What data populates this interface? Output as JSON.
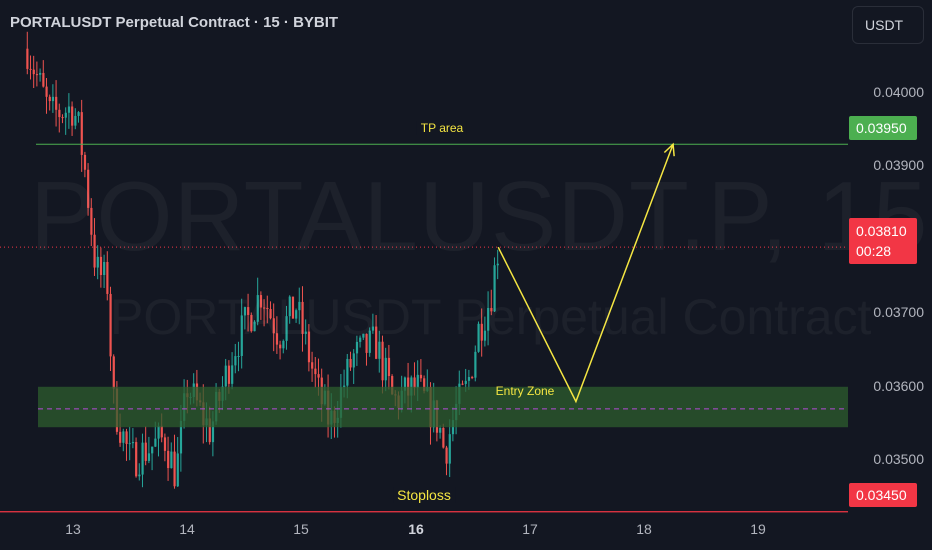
{
  "title": "PORTALUSDT Perpetual Contract · 15 · BYBIT",
  "currency_button": "USDT",
  "watermark": {
    "symbol": "PORTALUSDT.P, 15",
    "description": "PORTALUSDT Perpetual Contract"
  },
  "price_axis": [
    "0.04000",
    "0.03900",
    "0.03700",
    "0.03600",
    "0.03500"
  ],
  "badges": {
    "tp": {
      "value": "0.03950",
      "color": "#4caf50"
    },
    "current": {
      "value": "0.03810",
      "countdown": "00:28",
      "color": "#f23645"
    },
    "stop": {
      "value": "0.03450",
      "color": "#f23645"
    }
  },
  "time_axis": [
    {
      "label": "13",
      "bold": false
    },
    {
      "label": "14",
      "bold": false
    },
    {
      "label": "15",
      "bold": false
    },
    {
      "label": "16",
      "bold": true
    },
    {
      "label": "17",
      "bold": false
    },
    {
      "label": "18",
      "bold": false
    },
    {
      "label": "19",
      "bold": false
    }
  ],
  "annotations": {
    "tp_label": "TP area",
    "entry_label": "Entry Zone",
    "stop_label": "Stoploss"
  },
  "colors": {
    "background": "#131722",
    "bull": "#26a69a",
    "bear": "#ef5350",
    "tp_line": "#4caf50",
    "stop_line": "#f23645",
    "entry_zone": "#2e5d2e",
    "projection": "#f5e642"
  },
  "chart_data": {
    "type": "candlestick",
    "interval": "15",
    "exchange": "BYBIT",
    "ylim": [
      0.0342,
      0.041
    ],
    "x_ticks": [
      "13",
      "14",
      "15",
      "16",
      "17",
      "18",
      "19"
    ],
    "levels": {
      "tp": 0.0395,
      "current": 0.0381,
      "entry_zone": [
        0.03565,
        0.0362
      ],
      "entry_mid": 0.0359,
      "stoploss": 0.0345
    },
    "close_path": [
      {
        "x": "12.6",
        "y": 0.0408
      },
      {
        "x": "12.8",
        "y": 0.0399
      },
      {
        "x": "13.0",
        "y": 0.04
      },
      {
        "x": "13.05",
        "y": 0.0397
      },
      {
        "x": "13.1",
        "y": 0.0392
      },
      {
        "x": "13.2",
        "y": 0.0378
      },
      {
        "x": "13.3",
        "y": 0.0376
      },
      {
        "x": "13.35",
        "y": 0.036
      },
      {
        "x": "13.5",
        "y": 0.0352
      },
      {
        "x": "13.8",
        "y": 0.0355
      },
      {
        "x": "13.9",
        "y": 0.035
      },
      {
        "x": "14.0",
        "y": 0.0362
      },
      {
        "x": "14.2",
        "y": 0.0356
      },
      {
        "x": "14.4",
        "y": 0.0367
      },
      {
        "x": "14.65",
        "y": 0.0375
      },
      {
        "x": "14.8",
        "y": 0.0369
      },
      {
        "x": "14.95",
        "y": 0.0373
      },
      {
        "x": "15.15",
        "y": 0.0361
      },
      {
        "x": "15.25",
        "y": 0.0357
      },
      {
        "x": "15.45",
        "y": 0.0366
      },
      {
        "x": "15.65",
        "y": 0.0368
      },
      {
        "x": "15.8",
        "y": 0.036
      },
      {
        "x": "16.0",
        "y": 0.0362
      },
      {
        "x": "16.2",
        "y": 0.0357
      },
      {
        "x": "16.25",
        "y": 0.0353
      },
      {
        "x": "16.35",
        "y": 0.0359
      },
      {
        "x": "16.45",
        "y": 0.0362
      },
      {
        "x": "16.55",
        "y": 0.037
      },
      {
        "x": "16.65",
        "y": 0.0374
      },
      {
        "x": "16.72",
        "y": 0.0381
      }
    ],
    "projection": [
      {
        "x": "16.72",
        "y": 0.0381
      },
      {
        "x": "17.4",
        "y": 0.036
      },
      {
        "x": "18.25",
        "y": 0.0395
      }
    ]
  }
}
